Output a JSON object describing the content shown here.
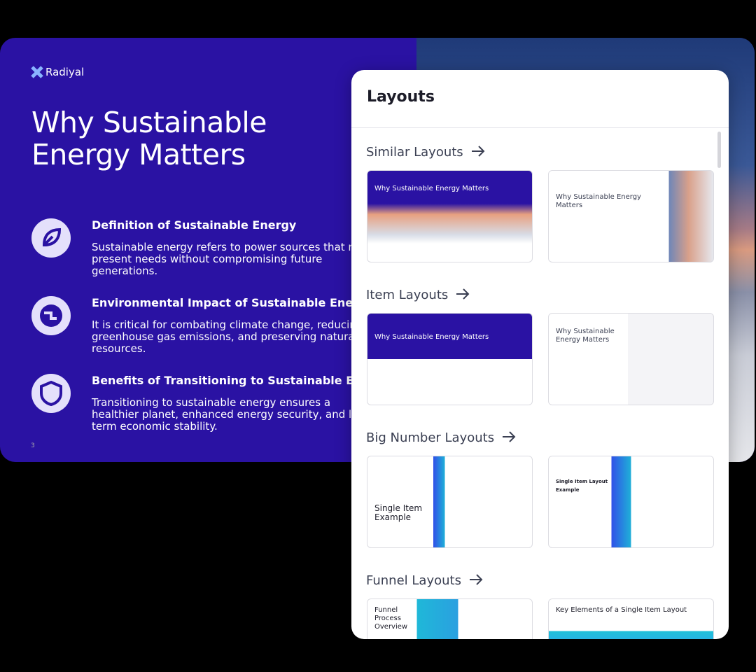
{
  "slide": {
    "brand": "Radiyal",
    "title": "Why Sustainable Energy Matters",
    "items": [
      {
        "title": "Definition of Sustainable Energy",
        "text": "Sustainable energy refers to power sources that meet present needs without compromising future generations."
      },
      {
        "title": "Environmental Impact of Sustainable Energy",
        "text": "It is critical for combating climate change, reducing greenhouse gas emissions, and preserving natural resources."
      },
      {
        "title": "Benefits of Transitioning to Sustainable Energy",
        "text": "Transitioning to sustainable energy ensures a healthier planet, enhanced energy security, and long-term economic stability."
      }
    ],
    "page_number": "3"
  },
  "panel": {
    "title": "Layouts",
    "sections": [
      {
        "title": "Similar Layouts",
        "thumbnails": [
          {
            "title": "Why Sustainable Energy Matters"
          },
          {
            "title": "Why Sustainable Energy Matters"
          }
        ]
      },
      {
        "title": "Item Layouts",
        "thumbnails": [
          {
            "title": "Why Sustainable Energy Matters"
          },
          {
            "title": "Why Sustainable Energy Matters"
          }
        ]
      },
      {
        "title": "Big Number Layouts",
        "thumbnails": [
          {
            "title": "Single Item Example"
          },
          {
            "title": "Single Item Layout Example"
          }
        ]
      },
      {
        "title": "Funnel Layouts",
        "thumbnails": [
          {
            "title": "Funnel Process Overview"
          },
          {
            "title": "Key Elements of a Single Item Layout"
          }
        ]
      }
    ]
  }
}
